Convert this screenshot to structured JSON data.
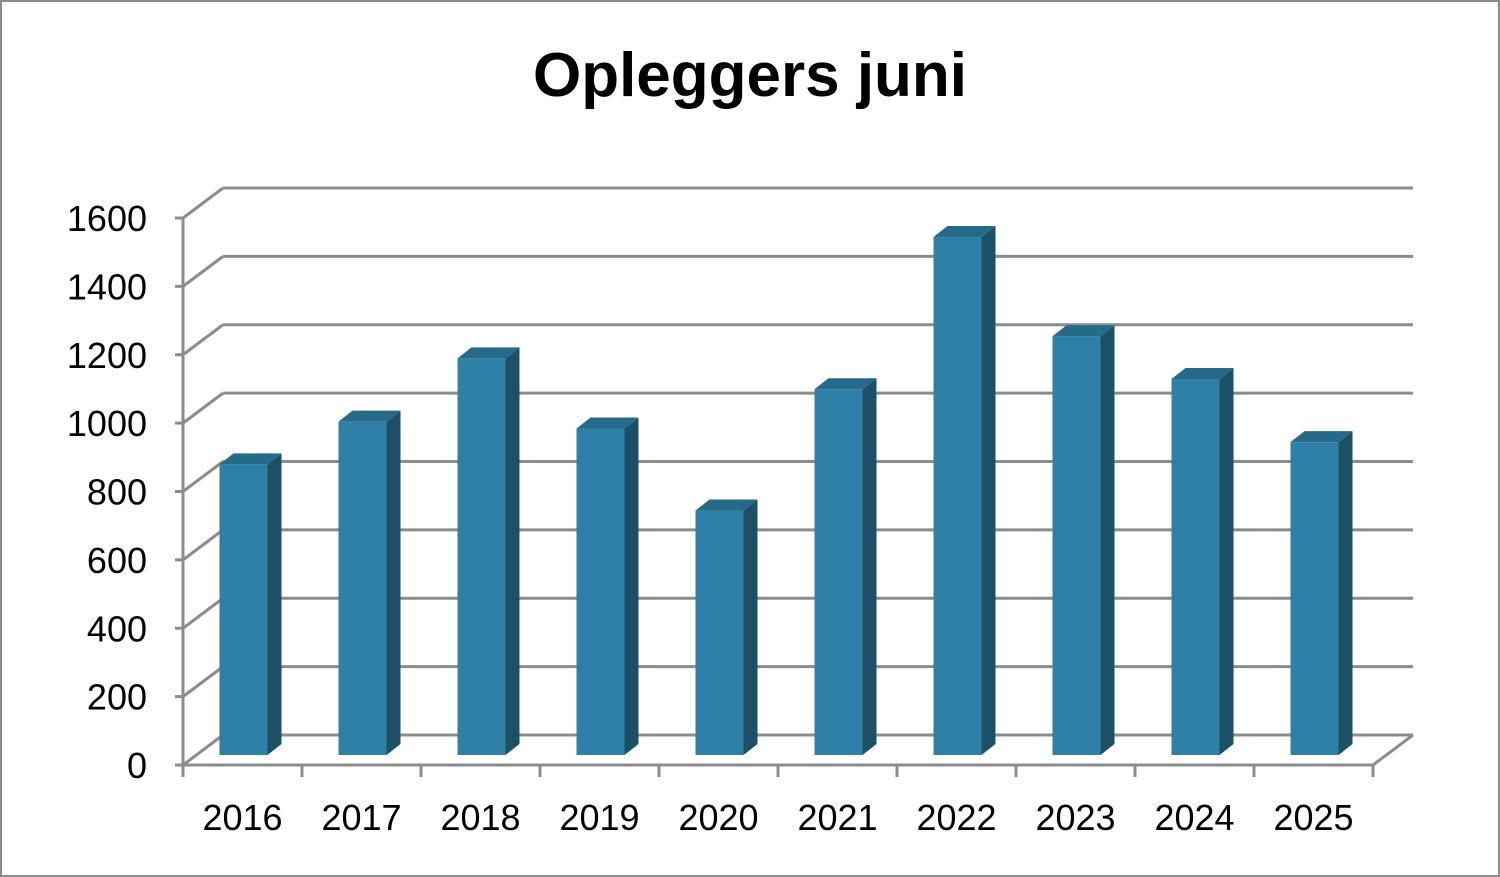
{
  "chart_data": {
    "type": "bar",
    "title": "Opleggers juni",
    "categories": [
      "2016",
      "2017",
      "2018",
      "2019",
      "2020",
      "2021",
      "2022",
      "2023",
      "2024",
      "2025"
    ],
    "values": [
      850,
      975,
      1160,
      955,
      715,
      1070,
      1515,
      1225,
      1100,
      915
    ],
    "ylim": [
      0,
      1600
    ],
    "yticks": [
      "0",
      "200",
      "400",
      "600",
      "800",
      "1000",
      "1200",
      "1400",
      "1600"
    ],
    "grid": true,
    "legend": "none",
    "style": "3d-column",
    "colors": {
      "bar_front": "#2e80a6",
      "bar_top": "#266a8a",
      "bar_side": "#1d4f66",
      "grid": "#8c8c8c"
    }
  }
}
